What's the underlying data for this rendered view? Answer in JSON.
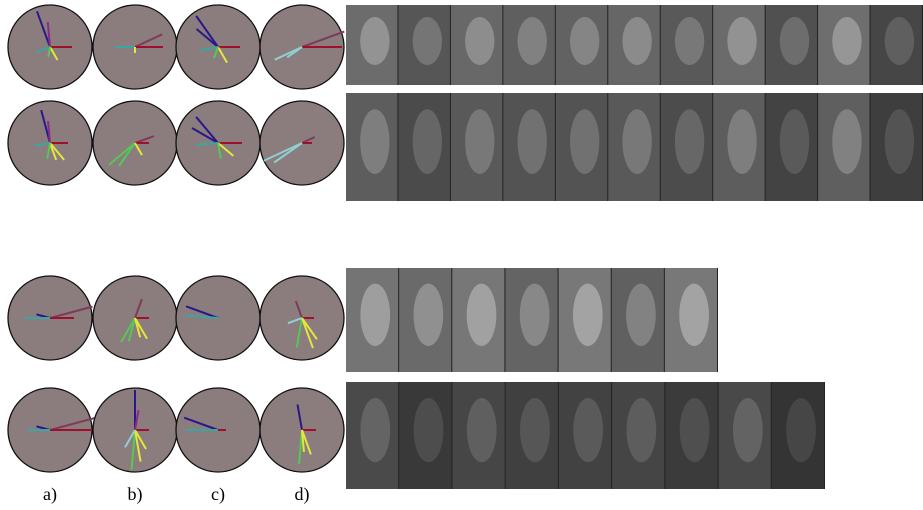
{
  "figure": {
    "labels": [
      "a)",
      "b)",
      "c)",
      "d)"
    ]
  }
}
